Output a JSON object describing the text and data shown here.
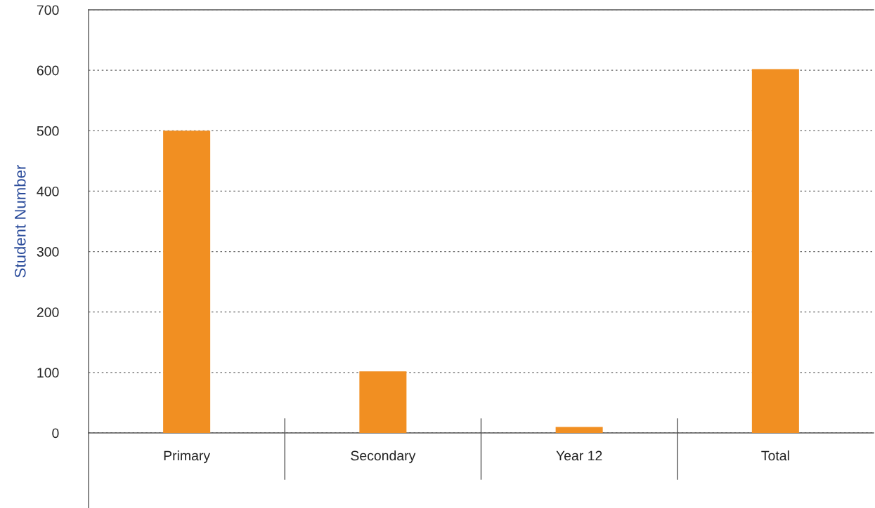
{
  "chart_data": {
    "type": "bar",
    "ylabel": "Student Number",
    "categories": [
      "Primary",
      "Secondary",
      "Year 12",
      "Total"
    ],
    "values": [
      500,
      102,
      10,
      602
    ],
    "color": "#f18f22",
    "ylim": [
      0,
      700
    ],
    "yticks": [
      0,
      100,
      200,
      300,
      400,
      500,
      600,
      700
    ],
    "grid": "y"
  }
}
